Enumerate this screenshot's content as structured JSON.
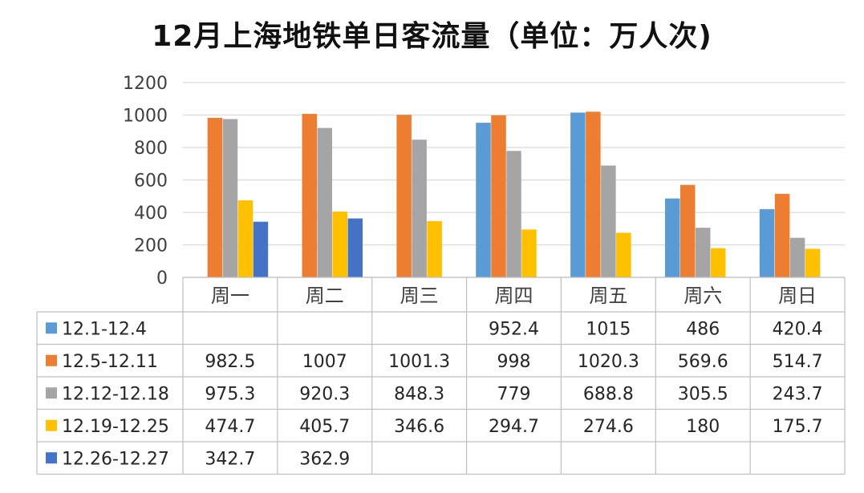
{
  "chart_data": {
    "type": "bar",
    "title": "12月上海地铁单日客流量（单位：万人次)",
    "categories": [
      "周一",
      "周二",
      "周三",
      "周四",
      "周五",
      "周六",
      "周日"
    ],
    "ylim": [
      0,
      1200
    ],
    "yticks": [
      "0",
      "200",
      "400",
      "600",
      "800",
      "1000",
      "1200"
    ],
    "grid": true,
    "legend": "data-table-left",
    "series": [
      {
        "name": "12.1-12.4",
        "color": "#5B9BD5",
        "values": [
          null,
          null,
          null,
          952.4,
          1015,
          486,
          420.4
        ],
        "labels": [
          "",
          "",
          "",
          "952.4",
          "1015",
          "486",
          "420.4"
        ]
      },
      {
        "name": "12.5-12.11",
        "color": "#ED7D31",
        "values": [
          982.5,
          1007,
          1001.3,
          998,
          1020.3,
          569.6,
          514.7
        ],
        "labels": [
          "982.5",
          "1007",
          "1001.3",
          "998",
          "1020.3",
          "569.6",
          "514.7"
        ]
      },
      {
        "name": "12.12-12.18",
        "color": "#A5A5A5",
        "values": [
          975.3,
          920.3,
          848.3,
          779,
          688.8,
          305.5,
          243.7
        ],
        "labels": [
          "975.3",
          "920.3",
          "848.3",
          "779",
          "688.8",
          "305.5",
          "243.7"
        ]
      },
      {
        "name": "12.19-12.25",
        "color": "#FFC000",
        "values": [
          474.7,
          405.7,
          346.6,
          294.7,
          274.6,
          180,
          175.7
        ],
        "labels": [
          "474.7",
          "405.7",
          "346.6",
          "294.7",
          "274.6",
          "180",
          "175.7"
        ]
      },
      {
        "name": "12.26-12.27",
        "color": "#4472C4",
        "values": [
          342.7,
          362.9,
          null,
          null,
          null,
          null,
          null
        ],
        "labels": [
          "342.7",
          "362.9",
          "",
          "",
          "",
          "",
          ""
        ]
      }
    ]
  }
}
